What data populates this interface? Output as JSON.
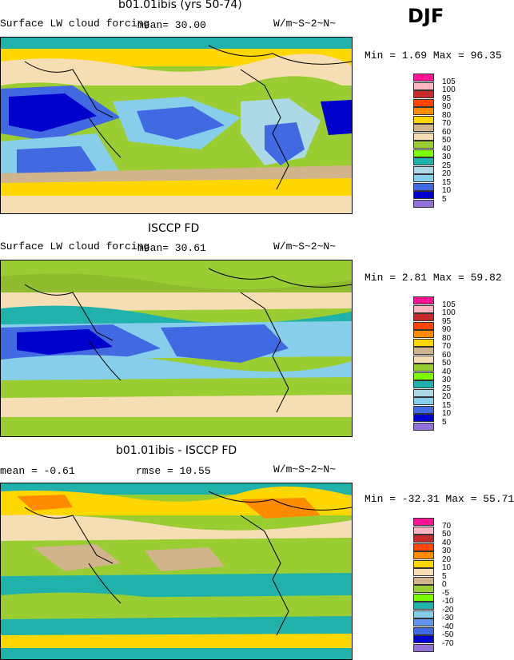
{
  "season": "DJF",
  "colors": {
    "105": "#ff1493",
    "100": "#ffb6c1",
    "95": "#c62a2a",
    "90": "#ff8c00",
    "80": "#ffa500",
    "70": "#ffd700",
    "60": "#d2b48c",
    "50": "#f5deb3",
    "40": "#8fbc2f",
    "30": "#9acd32",
    "25": "#20b2aa",
    "20": "#add8e6",
    "15": "#87ceeb",
    "10": "#4169e1",
    "5": "#0000cd",
    "low": "#9370db"
  },
  "panels": [
    {
      "title": "b01.01ibis (yrs 50-74)",
      "left_label": "Surface LW cloud forcing",
      "mean_label": "mean=  30.00",
      "units": "W/m~S~2~N~",
      "minmax": "Min =    1.69 Max =   96.35",
      "colorbar": [
        "105",
        "100",
        "95",
        "90",
        "80",
        "70",
        "60",
        "50",
        "40",
        "30",
        "25",
        "20",
        "15",
        "10",
        "5"
      ],
      "palette": [
        "#ff1493",
        "#ffb6c1",
        "#c62a2a",
        "#ff4500",
        "#ff8c00",
        "#ffd700",
        "#d2b48c",
        "#f5deb3",
        "#9acd32",
        "#7cfc00",
        "#20b2aa",
        "#add8e6",
        "#87ceeb",
        "#4169e1",
        "#0000cd",
        "#9370db"
      ]
    },
    {
      "title": "ISCCP FD",
      "left_label": "Surface LW cloud forcing",
      "mean_label": "mean=  30.61",
      "units": "W/m~S~2~N~",
      "minmax": "Min =    2.81 Max =   59.82",
      "colorbar": [
        "105",
        "100",
        "95",
        "90",
        "80",
        "70",
        "60",
        "50",
        "40",
        "30",
        "25",
        "20",
        "15",
        "10",
        "5"
      ],
      "palette": [
        "#ff1493",
        "#ffb6c1",
        "#c62a2a",
        "#ff4500",
        "#ff8c00",
        "#ffd700",
        "#d2b48c",
        "#f5deb3",
        "#9acd32",
        "#7cfc00",
        "#20b2aa",
        "#add8e6",
        "#87ceeb",
        "#4169e1",
        "#0000cd",
        "#9370db"
      ]
    },
    {
      "title": "b01.01ibis - ISCCP FD",
      "left_label": "mean =   -0.61",
      "mean_label": "rmse =   10.55",
      "units": "W/m~S~2~N~",
      "minmax": "Min =  -32.31 Max =   55.71",
      "colorbar": [
        "70",
        "50",
        "40",
        "30",
        "20",
        "10",
        "5",
        "0",
        "-5",
        "-10",
        "-20",
        "-30",
        "-40",
        "-50",
        "-70"
      ],
      "palette": [
        "#ff1493",
        "#ffb6c1",
        "#c62a2a",
        "#ff4500",
        "#ff8c00",
        "#ffd700",
        "#f5deb3",
        "#d2b48c",
        "#9acd32",
        "#7cfc00",
        "#20b2aa",
        "#87ceeb",
        "#6495ed",
        "#4169e1",
        "#0000cd",
        "#9370db"
      ]
    }
  ]
}
